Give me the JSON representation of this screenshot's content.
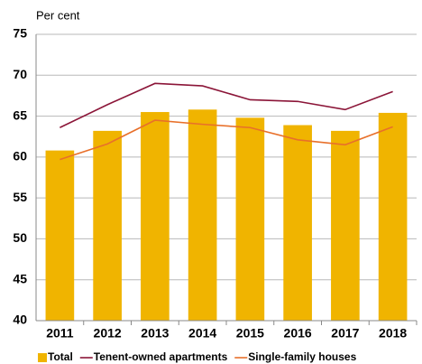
{
  "chart_data": {
    "type": "bar",
    "y_label": "Per cent",
    "categories": [
      "2011",
      "2012",
      "2013",
      "2014",
      "2015",
      "2016",
      "2017",
      "2018"
    ],
    "series": [
      {
        "name": "Total",
        "type": "bar",
        "color": "#f0b400",
        "values": [
          60.8,
          63.2,
          65.5,
          65.8,
          64.8,
          63.9,
          63.2,
          65.4
        ]
      },
      {
        "name": "Tenent-owned apartments",
        "type": "line",
        "color": "#8b1538",
        "values": [
          63.6,
          66.4,
          69.0,
          68.7,
          67.0,
          66.8,
          65.8,
          68.0
        ]
      },
      {
        "name": "Single-family houses",
        "type": "line",
        "color": "#e8702a",
        "values": [
          59.7,
          61.6,
          64.5,
          64.0,
          63.6,
          62.1,
          61.5,
          63.7
        ]
      }
    ],
    "ylim": [
      40,
      75
    ],
    "yticks": [
      40,
      45,
      50,
      55,
      60,
      65,
      70,
      75
    ],
    "grid": true
  }
}
